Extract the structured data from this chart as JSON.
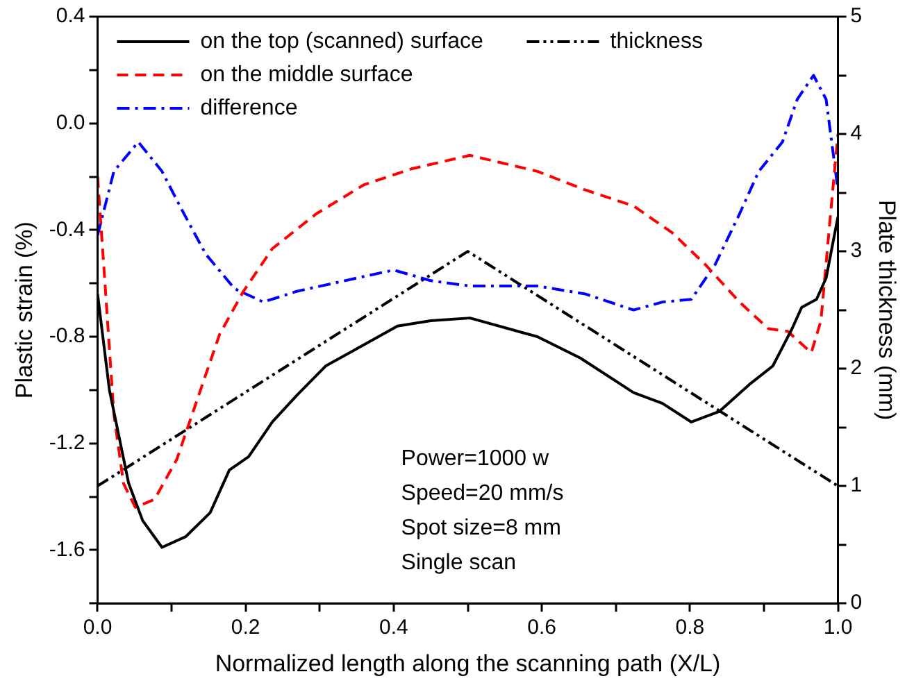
{
  "chart_data": {
    "type": "line",
    "xlabel": "Normalized length along the scanning path (X/L)",
    "ylabel": "Plastic strain (%)",
    "y2label": "Plate thickness (mm)",
    "xlim": [
      0,
      1
    ],
    "xticks": [
      {
        "value": 0,
        "label": "0.0"
      },
      {
        "value": 0.1,
        "label": null
      },
      {
        "value": 0.2,
        "label": "0.2"
      },
      {
        "value": 0.3,
        "label": null
      },
      {
        "value": 0.4,
        "label": "0.4"
      },
      {
        "value": 0.5,
        "label": null
      },
      {
        "value": 0.6,
        "label": "0.6"
      },
      {
        "value": 0.7,
        "label": null
      },
      {
        "value": 0.8,
        "label": "0.8"
      },
      {
        "value": 0.9,
        "label": null
      },
      {
        "value": 1,
        "label": "1.0"
      }
    ],
    "ylim": [
      -1.8,
      0.4
    ],
    "yticks": [
      {
        "value": -1.8,
        "label": null
      },
      {
        "value": -1.6,
        "label": "-1.6"
      },
      {
        "value": -1.4,
        "label": null
      },
      {
        "value": -1.2,
        "label": "-1.2"
      },
      {
        "value": -1,
        "label": null
      },
      {
        "value": -0.8,
        "label": "-0.8"
      },
      {
        "value": -0.6,
        "label": null
      },
      {
        "value": -0.4,
        "label": "-0.4"
      },
      {
        "value": -0.2,
        "label": null
      },
      {
        "value": 0,
        "label": "0.0"
      },
      {
        "value": 0.2,
        "label": null
      },
      {
        "value": 0.4,
        "label": "0.4"
      }
    ],
    "y2lim": [
      0,
      5
    ],
    "y2ticks": [
      0,
      {
        "value": 0.5,
        "label": null
      },
      1,
      {
        "value": 1.5,
        "label": null
      },
      2,
      {
        "value": 2.5,
        "label": null
      },
      3,
      {
        "value": 3.5,
        "label": null
      },
      4,
      {
        "value": 4.5,
        "label": null
      },
      5
    ],
    "legend": "top",
    "grid": false,
    "marker": "none",
    "annotations": [
      "Power=1000 w",
      "Speed=20 mm/s",
      "Spot size=8 mm",
      "Single scan"
    ],
    "series": [
      {
        "name": "on the top (scanned) surface",
        "color": "#000000",
        "line_style": "solid",
        "x": [
          0,
          0.016,
          0.042,
          0.061,
          0.087,
          0.119,
          0.152,
          0.178,
          0.204,
          0.236,
          0.269,
          0.308,
          0.36,
          0.405,
          0.45,
          0.503,
          0.594,
          0.652,
          0.724,
          0.763,
          0.802,
          0.84,
          0.88,
          0.912,
          0.938,
          0.951,
          0.971,
          0.984,
          1
        ],
        "values": [
          -0.64,
          -1.0,
          -1.35,
          -1.49,
          -1.59,
          -1.55,
          -1.46,
          -1.3,
          -1.25,
          -1.12,
          -1.02,
          -0.91,
          -0.83,
          -0.76,
          -0.74,
          -0.73,
          -0.8,
          -0.88,
          -1.01,
          -1.05,
          -1.12,
          -1.08,
          -0.98,
          -0.91,
          -0.77,
          -0.69,
          -0.66,
          -0.58,
          -0.35
        ]
      },
      {
        "name": "on the middle surface",
        "color": "#ff0000",
        "line_style": "dashed",
        "x": [
          0,
          0.009,
          0.022,
          0.035,
          0.051,
          0.077,
          0.107,
          0.139,
          0.165,
          0.197,
          0.236,
          0.295,
          0.36,
          0.425,
          0.503,
          0.594,
          0.659,
          0.724,
          0.776,
          0.821,
          0.867,
          0.906,
          0.932,
          0.964,
          0.977,
          0.99,
          1
        ],
        "values": [
          -0.2,
          -0.56,
          -1.09,
          -1.35,
          -1.44,
          -1.41,
          -1.26,
          -1.0,
          -0.79,
          -0.63,
          -0.47,
          -0.34,
          -0.23,
          -0.17,
          -0.12,
          -0.18,
          -0.25,
          -0.31,
          -0.41,
          -0.53,
          -0.67,
          -0.77,
          -0.78,
          -0.86,
          -0.74,
          -0.34,
          -0.04
        ]
      },
      {
        "name": "difference",
        "color": "#0000ff",
        "line_style": "dashdot",
        "x": [
          0,
          0.022,
          0.055,
          0.087,
          0.113,
          0.146,
          0.185,
          0.224,
          0.269,
          0.334,
          0.4,
          0.45,
          0.503,
          0.594,
          0.659,
          0.724,
          0.763,
          0.802,
          0.834,
          0.867,
          0.893,
          0.925,
          0.945,
          0.967,
          0.984,
          1
        ],
        "values": [
          -0.42,
          -0.18,
          -0.07,
          -0.18,
          -0.32,
          -0.49,
          -0.62,
          -0.67,
          -0.63,
          -0.59,
          -0.55,
          -0.59,
          -0.61,
          -0.61,
          -0.64,
          -0.7,
          -0.67,
          -0.66,
          -0.53,
          -0.34,
          -0.18,
          -0.07,
          0.09,
          0.18,
          0.09,
          -0.25
        ]
      },
      {
        "name": "thickness",
        "color": "#000000",
        "line_style": "dashdotdot",
        "axis": "y2",
        "x": [
          0,
          0.5,
          1
        ],
        "values": [
          1.0,
          3.0,
          1.0
        ]
      }
    ]
  }
}
